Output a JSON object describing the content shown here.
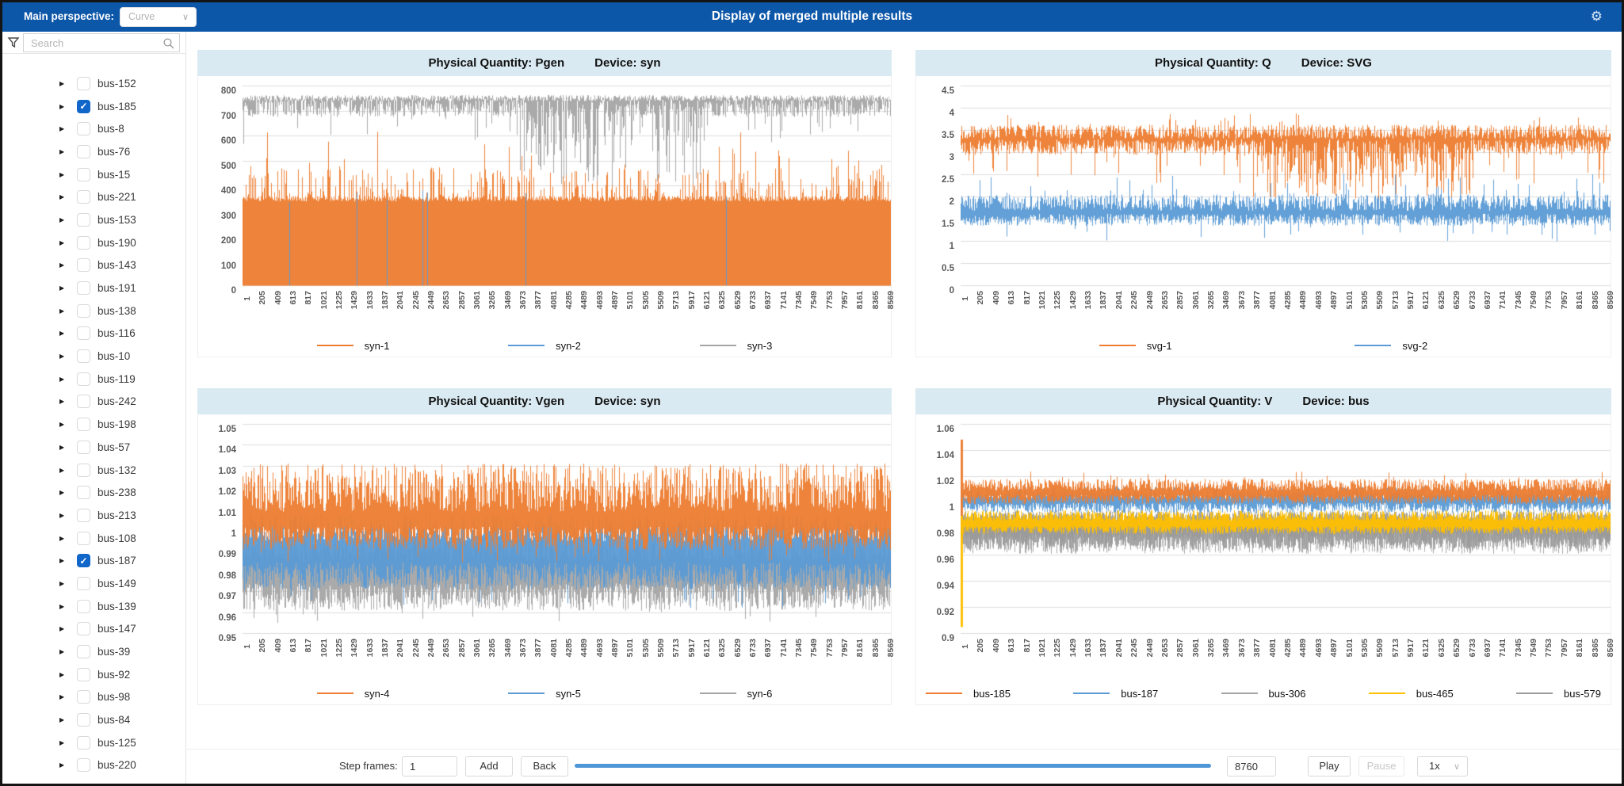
{
  "topbar": {
    "main_perspective_label": "Main perspective:",
    "perspective_value": "Curve",
    "title": "Display of merged multiple results"
  },
  "sidebar": {
    "search_placeholder": "Search",
    "items": [
      {
        "label": "bus-152",
        "checked": false
      },
      {
        "label": "bus-185",
        "checked": true
      },
      {
        "label": "bus-8",
        "checked": false
      },
      {
        "label": "bus-76",
        "checked": false
      },
      {
        "label": "bus-15",
        "checked": false
      },
      {
        "label": "bus-221",
        "checked": false
      },
      {
        "label": "bus-153",
        "checked": false
      },
      {
        "label": "bus-190",
        "checked": false
      },
      {
        "label": "bus-143",
        "checked": false
      },
      {
        "label": "bus-191",
        "checked": false
      },
      {
        "label": "bus-138",
        "checked": false
      },
      {
        "label": "bus-116",
        "checked": false
      },
      {
        "label": "bus-10",
        "checked": false
      },
      {
        "label": "bus-119",
        "checked": false
      },
      {
        "label": "bus-242",
        "checked": false
      },
      {
        "label": "bus-198",
        "checked": false
      },
      {
        "label": "bus-57",
        "checked": false
      },
      {
        "label": "bus-132",
        "checked": false
      },
      {
        "label": "bus-238",
        "checked": false
      },
      {
        "label": "bus-213",
        "checked": false
      },
      {
        "label": "bus-108",
        "checked": false
      },
      {
        "label": "bus-187",
        "checked": true
      },
      {
        "label": "bus-149",
        "checked": false
      },
      {
        "label": "bus-139",
        "checked": false
      },
      {
        "label": "bus-147",
        "checked": false
      },
      {
        "label": "bus-39",
        "checked": false
      },
      {
        "label": "bus-92",
        "checked": false
      },
      {
        "label": "bus-98",
        "checked": false
      },
      {
        "label": "bus-84",
        "checked": false
      },
      {
        "label": "bus-125",
        "checked": false
      },
      {
        "label": "bus-220",
        "checked": false
      }
    ]
  },
  "playback": {
    "step_frames_label": "Step frames:",
    "step_frames_value": "1",
    "add_label": "Add",
    "back_label": "Back",
    "total_frames_value": "8760",
    "play_label": "Play",
    "pause_label": "Pause",
    "speed_value": "1x"
  },
  "x_axis_labels": [
    1,
    205,
    409,
    613,
    817,
    1021,
    1225,
    1429,
    1633,
    1837,
    2041,
    2245,
    2449,
    2653,
    2857,
    3061,
    3265,
    3469,
    3673,
    3877,
    4081,
    4285,
    4489,
    4693,
    4897,
    5101,
    5305,
    5509,
    5713,
    5917,
    6121,
    6325,
    6529,
    6733,
    6937,
    7141,
    7345,
    7549,
    7753,
    7957,
    8161,
    8365,
    8569
  ],
  "chart_data": [
    {
      "type": "line",
      "quantity": "Physical Quantity: Pgen",
      "device": "Device: syn",
      "ylim": [
        0,
        800
      ],
      "yticks": [
        0,
        100,
        200,
        300,
        400,
        500,
        600,
        700,
        800
      ],
      "x_range": [
        1,
        8760
      ],
      "grid": true,
      "legend_position": "bottom",
      "legend": [
        {
          "name": "syn-1",
          "color": "#ED7D31"
        },
        {
          "name": "syn-2",
          "color": "#5B9BD5"
        },
        {
          "name": "syn-3",
          "color": "#A5A5A5"
        }
      ],
      "series": [
        {
          "name": "syn-1",
          "color": "#ED7D31",
          "style": "fill",
          "base": [
            336,
            358
          ],
          "spikes": [
            {
              "p": 0.28,
              "range": [
                358,
                470
              ]
            },
            {
              "p": 0.03,
              "range": [
                470,
                560
              ]
            },
            {
              "p": 0.008,
              "range": [
                560,
                665
              ]
            }
          ],
          "seed": 11
        },
        {
          "name": "syn-2",
          "color": "#5B9BD5",
          "style": "sparse",
          "p": 0.009,
          "range": [
            330,
            392
          ],
          "seed": 12
        },
        {
          "name": "syn-3",
          "color": "#A5A5A5",
          "style": "hang",
          "top": [
            738,
            762
          ],
          "lo": [
            676,
            752
          ],
          "spike_lo": {
            "p": 0.07,
            "range": [
              556,
              690
            ]
          },
          "mid": {
            "from": 0.42,
            "to": 0.72,
            "p": 0.5,
            "lo": [
              400,
              730
            ]
          },
          "seed": 13
        }
      ]
    },
    {
      "type": "line",
      "quantity": "Physical Quantity: Q",
      "device": "Device: SVG",
      "ylim": [
        0,
        4.5
      ],
      "yticks": [
        0,
        0.5,
        1,
        1.5,
        2,
        2.5,
        3,
        3.5,
        4,
        4.5
      ],
      "x_range": [
        1,
        8760
      ],
      "grid": true,
      "legend_position": "bottom",
      "legend": [
        {
          "name": "svg-1",
          "color": "#ED7D31"
        },
        {
          "name": "svg-2",
          "color": "#5B9BD5"
        }
      ],
      "series": [
        {
          "name": "svg-2",
          "color": "#5B9BD5",
          "style": "band",
          "lo": [
            1.35,
            1.62
          ],
          "hi": [
            1.68,
            2.05
          ],
          "spike_lo": {
            "p": 0.03,
            "range": [
              1.0,
              1.35
            ]
          },
          "spike_hi": {
            "p": 0.05,
            "range": [
              2.05,
              2.52
            ]
          },
          "seed": 21
        },
        {
          "name": "svg-1",
          "color": "#ED7D31",
          "style": "band",
          "lo": [
            2.95,
            3.3
          ],
          "hi": [
            3.3,
            3.62
          ],
          "spike_lo": {
            "p": 0.06,
            "range": [
              2.3,
              2.95
            ]
          },
          "spike_hi": {
            "p": 0.03,
            "range": [
              3.62,
              3.88
            ]
          },
          "mid": {
            "from": 0.45,
            "to": 0.79,
            "p": 0.55,
            "lo": [
              1.95,
              3.0
            ]
          },
          "seed": 22
        }
      ]
    },
    {
      "type": "line",
      "quantity": "Physical Quantity: Vgen",
      "device": "Device: syn",
      "ylim": [
        0.95,
        1.05
      ],
      "yticks": [
        0.95,
        0.96,
        0.97,
        0.98,
        0.99,
        1,
        1.01,
        1.02,
        1.03,
        1.04,
        1.05
      ],
      "x_range": [
        1,
        8760
      ],
      "grid": true,
      "legend_position": "bottom",
      "legend": [
        {
          "name": "syn-4",
          "color": "#ED7D31"
        },
        {
          "name": "syn-5",
          "color": "#5B9BD5"
        },
        {
          "name": "syn-6",
          "color": "#A5A5A5"
        }
      ],
      "series": [
        {
          "name": "syn-6",
          "color": "#A5A5A5",
          "style": "band",
          "lo": [
            0.961,
            0.974
          ],
          "hi": [
            0.984,
            0.996
          ],
          "spike_lo": {
            "p": 0.03,
            "range": [
              0.955,
              0.961
            ]
          },
          "seed": 31
        },
        {
          "name": "syn-5",
          "color": "#5B9BD5",
          "style": "band",
          "lo": [
            0.971,
            0.984
          ],
          "hi": [
            0.994,
            1.007
          ],
          "spike_lo": {
            "p": 0.02,
            "range": [
              0.962,
              0.971
            ]
          },
          "seed": 32
        },
        {
          "name": "syn-4",
          "color": "#ED7D31",
          "style": "band",
          "lo": [
            0.99,
            1.001
          ],
          "hi": [
            1.008,
            1.031
          ],
          "spike_lo": {
            "p": 0.04,
            "range": [
              0.984,
              0.99
            ]
          },
          "seed": 33
        }
      ]
    },
    {
      "type": "line",
      "quantity": "Physical Quantity: V",
      "device": "Device: bus",
      "ylim": [
        0.9,
        1.06
      ],
      "yticks": [
        0.9,
        0.92,
        0.94,
        0.96,
        0.98,
        1,
        1.02,
        1.04,
        1.06
      ],
      "x_range": [
        1,
        8760
      ],
      "grid": true,
      "legend_position": "bottom",
      "legend": [
        {
          "name": "bus-185",
          "color": "#ED7D31"
        },
        {
          "name": "bus-187",
          "color": "#5B9BD5"
        },
        {
          "name": "bus-306",
          "color": "#A5A5A5"
        },
        {
          "name": "bus-465",
          "color": "#FFC000"
        },
        {
          "name": "bus-579",
          "color": "#9B9B9B"
        }
      ],
      "series": [
        {
          "name": "bus-306",
          "color": "#A5A5A5",
          "style": "band",
          "lo": [
            0.961,
            0.974
          ],
          "hi": [
            0.983,
            0.994
          ],
          "seed": 41
        },
        {
          "name": "bus-579",
          "color": "#9B9B9B",
          "style": "band",
          "lo": [
            0.965,
            0.978
          ],
          "hi": [
            0.985,
            0.993
          ],
          "seed": 42
        },
        {
          "name": "bus-465",
          "color": "#FFC000",
          "style": "band",
          "lo": [
            0.976,
            0.982
          ],
          "hi": [
            0.986,
            0.994
          ],
          "init": {
            "width": 3,
            "range": [
              0.905,
              0.99
            ]
          },
          "seed": 43
        },
        {
          "name": "bus-187",
          "color": "#5B9BD5",
          "style": "band",
          "lo": [
            0.992,
            1.0
          ],
          "hi": [
            1.003,
            1.012
          ],
          "seed": 44
        },
        {
          "name": "bus-185",
          "color": "#ED7D31",
          "style": "band",
          "lo": [
            0.999,
            1.006
          ],
          "hi": [
            1.009,
            1.018
          ],
          "spike_hi": {
            "p": 0.02,
            "range": [
              1.018,
              1.024
            ]
          },
          "init": {
            "width": 3,
            "range": [
              0.99,
              1.048
            ]
          },
          "seed": 45
        }
      ]
    }
  ]
}
